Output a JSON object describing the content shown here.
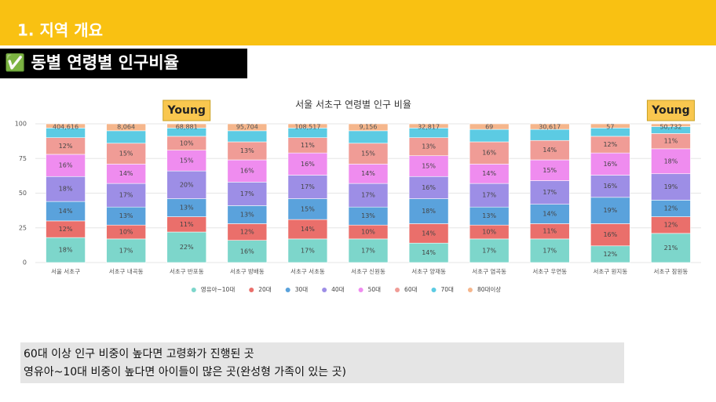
{
  "header": {
    "title": "1. 지역 개요",
    "subtitle": "✅ 동별 연령별 인구비율"
  },
  "chart_data": {
    "type": "stacked_bar_100",
    "title": "서울 서초구 연령별 인구 비율",
    "categories": [
      "서울 서초구",
      "서초구 내곡동",
      "서초구 반포동",
      "서초구 방배동",
      "서초구 서초동",
      "서초구 신원동",
      "서초구 양재동",
      "서초구 염곡동",
      "서초구 우면동",
      "서초구 원지동",
      "서초구 잠원동"
    ],
    "series": [
      {
        "name": "영유아~10대",
        "color": "#7dd6cb",
        "values": [
          18,
          17,
          22,
          16,
          17,
          17,
          14,
          17,
          17,
          12,
          21
        ],
        "value_labels": [
          "18%",
          "17%",
          "22%",
          "16%",
          "17%",
          "17%",
          "14%",
          "17%",
          "17%",
          "12%",
          "21%"
        ]
      },
      {
        "name": "20대",
        "color": "#ea6f6b",
        "values": [
          12,
          10,
          11,
          12,
          14,
          10,
          14,
          10,
          11,
          16,
          12
        ],
        "value_labels": [
          "12%",
          "10%",
          "11%",
          "12%",
          "14%",
          "10%",
          "14%",
          "10%",
          "11%",
          "16%",
          "12%"
        ]
      },
      {
        "name": "30대",
        "color": "#5aa2dc",
        "values": [
          14,
          13,
          13,
          13,
          15,
          13,
          18,
          13,
          14,
          19,
          12
        ],
        "value_labels": [
          "14%",
          "13%",
          "13%",
          "13%",
          "15%",
          "13%",
          "18%",
          "13%",
          "14%",
          "19%",
          "12%"
        ]
      },
      {
        "name": "40대",
        "color": "#9d8ee6",
        "values": [
          18,
          17,
          20,
          17,
          17,
          17,
          16,
          17,
          17,
          16,
          19
        ],
        "value_labels": [
          "18%",
          "17%",
          "20%",
          "17%",
          "17%",
          "17%",
          "16%",
          "17%",
          "17%",
          "16%",
          "19%"
        ]
      },
      {
        "name": "50대",
        "color": "#ef8cef",
        "values": [
          16,
          14,
          15,
          16,
          16,
          14,
          15,
          14,
          15,
          16,
          18
        ],
        "value_labels": [
          "16%",
          "14%",
          "15%",
          "16%",
          "16%",
          "14%",
          "15%",
          "14%",
          "15%",
          "16%",
          "18%"
        ]
      },
      {
        "name": "60대",
        "color": "#f09c96",
        "values": [
          12,
          15,
          10,
          13,
          11,
          15,
          13,
          16,
          14,
          12,
          11
        ],
        "value_labels": [
          "12%",
          "15%",
          "10%",
          "13%",
          "11%",
          "15%",
          "13%",
          "16%",
          "14%",
          "12%",
          "11%"
        ]
      },
      {
        "name": "70대",
        "color": "#5ccbe3",
        "values": [
          7,
          9,
          6,
          8,
          7,
          9,
          7,
          9,
          8,
          6,
          5
        ],
        "value_labels": [
          null,
          null,
          null,
          null,
          null,
          null,
          null,
          null,
          null,
          null,
          null
        ]
      },
      {
        "name": "80대이상",
        "color": "#f5b68c",
        "values": [
          3,
          5,
          3,
          5,
          3,
          5,
          3,
          4,
          4,
          3,
          2
        ],
        "value_labels": [
          null,
          null,
          null,
          null,
          null,
          null,
          null,
          null,
          null,
          null,
          null
        ]
      }
    ],
    "totals": [
      {
        "value": 404616,
        "label": "404,616"
      },
      {
        "value": 8064,
        "label": "8,064"
      },
      {
        "value": 68881,
        "label": "68,881"
      },
      {
        "value": 95704,
        "label": "95,704"
      },
      {
        "value": 108517,
        "label": "108,517"
      },
      {
        "value": 9156,
        "label": "9,156"
      },
      {
        "value": 32817,
        "label": "32,817"
      },
      {
        "value": 69,
        "label": "69"
      },
      {
        "value": 30617,
        "label": "30,617"
      },
      {
        "value": 57,
        "label": "57"
      },
      {
        "value": 50732,
        "label": "50,732"
      }
    ],
    "ylim": [
      0,
      100
    ],
    "yticks": [
      0,
      25,
      50,
      75,
      100
    ],
    "grid": true,
    "annotations": [
      {
        "text": "Young",
        "category": "서초구 반포동"
      },
      {
        "text": "Young",
        "category": "서초구 잠원동"
      }
    ]
  },
  "notes": [
    "60대 이상 인구 비중이 높다면 고령화가 진행된 곳",
    "영유아~10대 비중이 높다면 아이들이 많은 곳(완성형 가족이 있는 곳)"
  ]
}
